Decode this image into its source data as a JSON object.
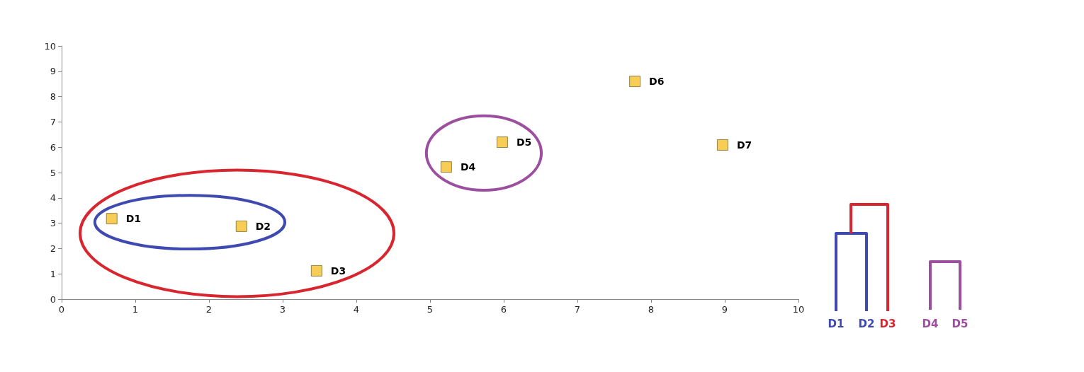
{
  "chart_data": {
    "type": "scatter",
    "x": [
      0.68,
      2.44,
      3.46,
      5.22,
      5.98,
      7.78,
      8.97
    ],
    "values": [
      3.18,
      2.88,
      1.12,
      5.22,
      6.2,
      8.6,
      6.09
    ],
    "color": "#f5c02a",
    "marker": "square",
    "xlim": [
      0,
      10
    ],
    "xticks": [
      0,
      1,
      2,
      3,
      4,
      5,
      6,
      7,
      8,
      9,
      10
    ],
    "ylim": [
      0,
      10
    ],
    "yticks": [
      0,
      1,
      2,
      3,
      4,
      5,
      6,
      7,
      8,
      9,
      10
    ],
    "grid": false,
    "annotations": [
      {
        "text": "D1",
        "x": 0.68,
        "y": 3.18
      },
      {
        "text": "D2",
        "x": 2.44,
        "y": 2.88
      },
      {
        "text": "D3",
        "x": 3.46,
        "y": 1.12
      },
      {
        "text": "D4",
        "x": 5.22,
        "y": 5.22
      },
      {
        "text": "D5",
        "x": 5.98,
        "y": 6.2
      },
      {
        "text": "D6",
        "x": 7.78,
        "y": 8.6
      },
      {
        "text": "D7",
        "x": 8.97,
        "y": 6.09
      },
      "D1",
      "D2",
      "D3",
      "D4",
      "D5"
    ]
  }
}
